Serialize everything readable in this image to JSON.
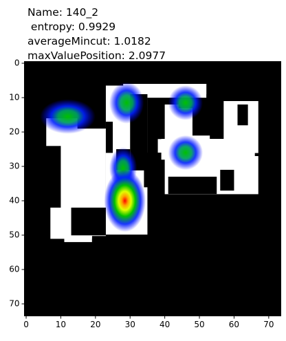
{
  "chart_data": {
    "type": "heatmap",
    "title": [
      "Name: 140_2",
      " entropy: 0.9929",
      "averageMincut: 1.0182",
      "maxValuePosition: 2.0977"
    ],
    "xlim": [
      -0.5,
      73.5
    ],
    "ylim": [
      73.5,
      -0.5
    ],
    "xticks": [
      0,
      10,
      20,
      30,
      40,
      50,
      60,
      70
    ],
    "yticks": [
      0,
      10,
      20,
      30,
      40,
      50,
      60,
      70
    ]
  }
}
